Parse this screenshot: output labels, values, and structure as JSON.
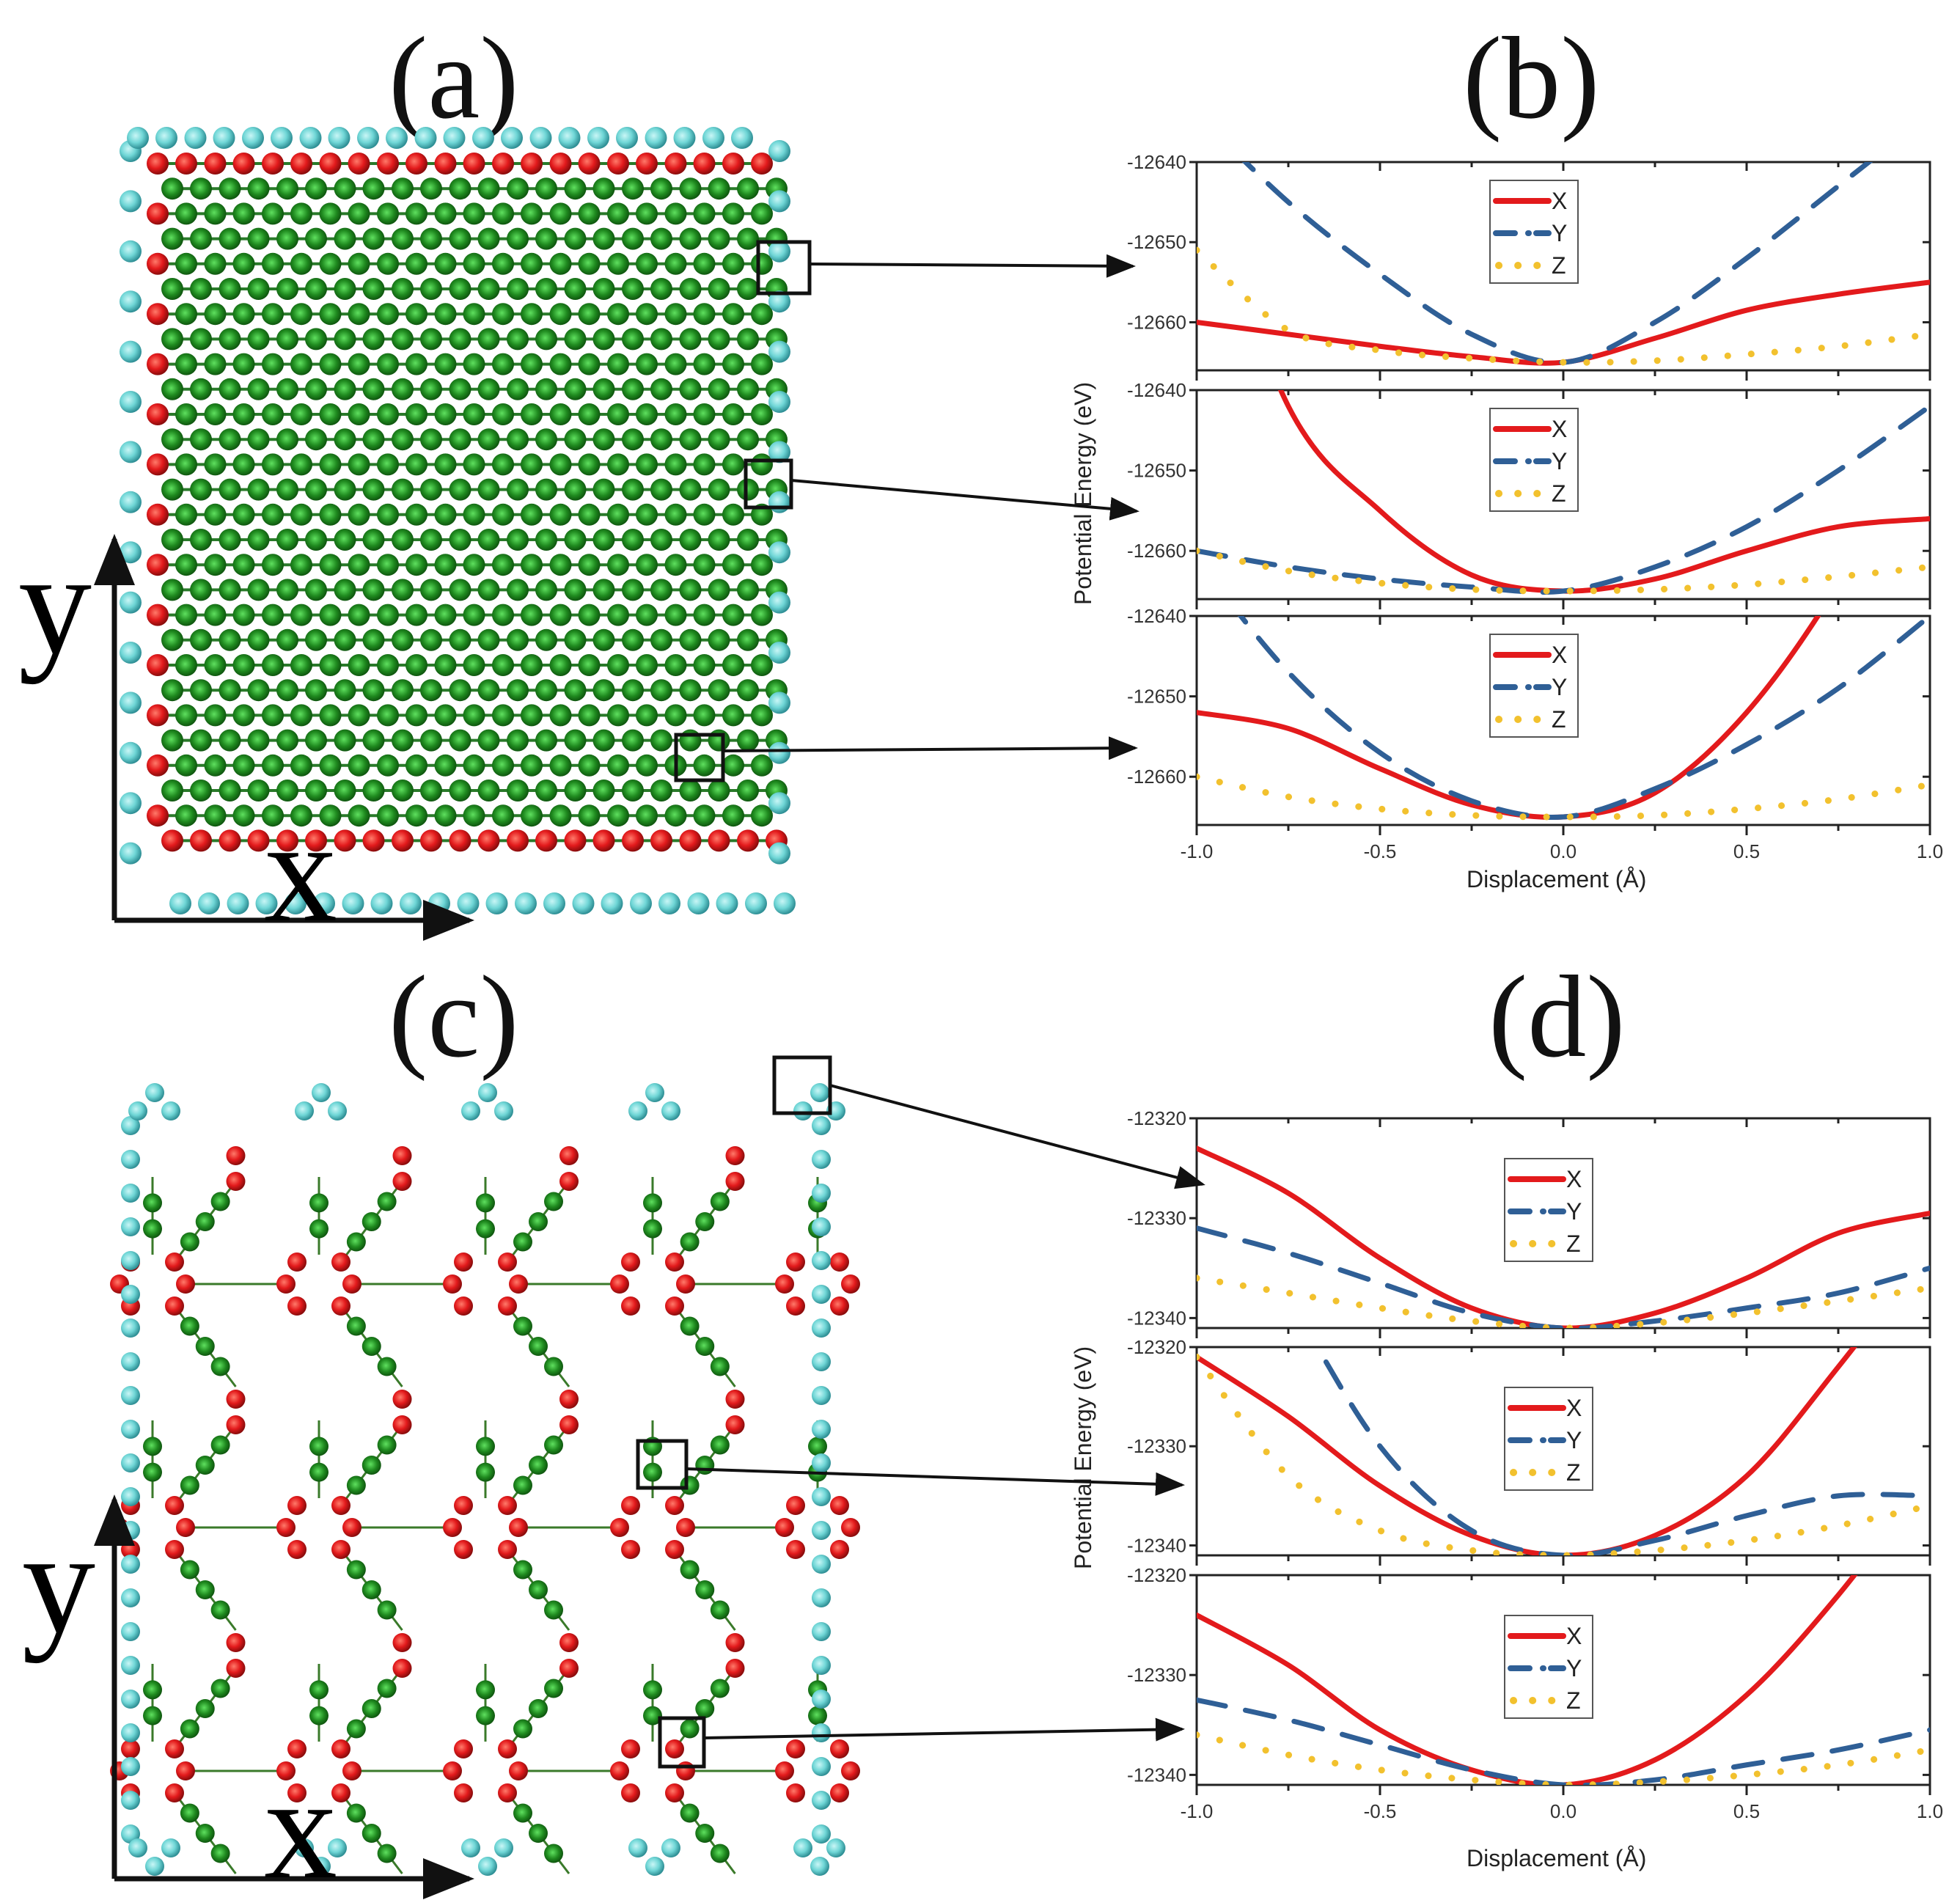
{
  "panels": {
    "a": {
      "label": "(a)",
      "axis_x": "x",
      "axis_y": "y"
    },
    "b": {
      "label": "(b)"
    },
    "c": {
      "label": "(c)",
      "axis_x": "x",
      "axis_y": "y"
    },
    "d": {
      "label": "(d)"
    }
  },
  "legend": [
    {
      "name": "X",
      "color": "#e31a1c",
      "style": "solid"
    },
    {
      "name": "Y",
      "color": "#2f5f96",
      "style": "dash-dot"
    },
    {
      "name": "Z",
      "color": "#f2c12e",
      "style": "dot"
    }
  ],
  "atom_colors": {
    "edge": "#6fd6d6",
    "corner": "#e31a1c",
    "interior": "#1f8a1f"
  },
  "chart_data": [
    {
      "type": "line",
      "panel": "b",
      "subplot": 1,
      "title": "",
      "xlabel": "Displacement (Å)",
      "ylabel": "Potential Energy (eV)",
      "xlim": [
        -1.0,
        1.0
      ],
      "ylim": [
        -12666,
        -12640
      ],
      "x_ticks": [
        "-1.0",
        "-0.5",
        "0.0",
        "0.5",
        "1.0"
      ],
      "y_ticks": [
        "-12640",
        "-12650",
        "-12660"
      ],
      "x": [
        -1.0,
        -0.75,
        -0.5,
        -0.25,
        0.0,
        0.25,
        0.5,
        0.75,
        1.0
      ],
      "series": [
        {
          "name": "X",
          "values": [
            -12660,
            -12661.5,
            -12663,
            -12664.3,
            -12665,
            -12662,
            -12658.5,
            -12656.5,
            -12655
          ]
        },
        {
          "name": "Y",
          "values": [
            -12634,
            -12645,
            -12654,
            -12661.5,
            -12665,
            -12660,
            -12652,
            -12643,
            -12634
          ]
        },
        {
          "name": "Z",
          "values": [
            -12651,
            -12661,
            -12663.5,
            -12664.5,
            -12665,
            -12664.8,
            -12664,
            -12663,
            -12661.5
          ]
        }
      ],
      "legend_position": "upper-center",
      "grid": false
    },
    {
      "type": "line",
      "panel": "b",
      "subplot": 2,
      "xlabel": "Displacement (Å)",
      "ylabel": "Potential Energy (eV)",
      "xlim": [
        -1.0,
        1.0
      ],
      "ylim": [
        -12666,
        -12640
      ],
      "x_ticks": [
        "-1.0",
        "-0.5",
        "0.0",
        "0.5",
        "1.0"
      ],
      "y_ticks": [
        "-12640",
        "-12650",
        "-12660"
      ],
      "x": [
        -1.0,
        -0.75,
        -0.5,
        -0.25,
        0.0,
        0.25,
        0.5,
        0.75,
        1.0
      ],
      "series": [
        {
          "name": "X",
          "values": [
            -12610,
            -12642,
            -12655,
            -12663,
            -12665,
            -12663.5,
            -12660,
            -12657,
            -12656
          ]
        },
        {
          "name": "Y",
          "values": [
            -12660,
            -12662,
            -12663.5,
            -12664.5,
            -12665,
            -12662,
            -12657,
            -12650,
            -12642
          ]
        },
        {
          "name": "Z",
          "values": [
            -12660,
            -12662.5,
            -12664,
            -12664.8,
            -12665,
            -12664.8,
            -12664.2,
            -12663.2,
            -12662
          ]
        }
      ],
      "legend_position": "upper-center",
      "grid": false
    },
    {
      "type": "line",
      "panel": "b",
      "subplot": 3,
      "xlabel": "Displacement (Å)",
      "ylabel": "Potential Energy (eV)",
      "xlim": [
        -1.0,
        1.0
      ],
      "ylim": [
        -12666,
        -12640
      ],
      "x_ticks": [
        "-1.0",
        "-0.5",
        "0.0",
        "0.5",
        "1.0"
      ],
      "y_ticks": [
        "-12640",
        "-12650",
        "-12660"
      ],
      "x": [
        -1.0,
        -0.75,
        -0.5,
        -0.25,
        0.0,
        0.25,
        0.5,
        0.75,
        1.0
      ],
      "series": [
        {
          "name": "X",
          "values": [
            -12652,
            -12654,
            -12659,
            -12663.5,
            -12665,
            -12662,
            -12652,
            -12636,
            -12615
          ]
        },
        {
          "name": "Y",
          "values": [
            -12633,
            -12647,
            -12657,
            -12663,
            -12665,
            -12661.5,
            -12656,
            -12649,
            -12640
          ]
        },
        {
          "name": "Z",
          "values": [
            -12660,
            -12662.5,
            -12664,
            -12664.8,
            -12665,
            -12664.8,
            -12664,
            -12662.8,
            -12661
          ]
        }
      ],
      "legend_position": "upper-center",
      "grid": false
    },
    {
      "type": "line",
      "panel": "d",
      "subplot": 1,
      "xlabel": "Displacement (Å)",
      "ylabel": "Potential Energy (eV)",
      "xlim": [
        -1.0,
        1.0
      ],
      "ylim": [
        -12341,
        -12320
      ],
      "x_ticks": [
        "-1.0",
        "-0.5",
        "0.0",
        "0.5",
        "1.0"
      ],
      "y_ticks": [
        "-12320",
        "-12330",
        "-12340"
      ],
      "x": [
        -1.0,
        -0.75,
        -0.5,
        -0.25,
        0.0,
        0.25,
        0.5,
        0.75,
        1.0
      ],
      "series": [
        {
          "name": "X",
          "values": [
            -12323,
            -12327.5,
            -12334,
            -12339,
            -12341,
            -12339.5,
            -12336,
            -12331.5,
            -12329.5
          ]
        },
        {
          "name": "Y",
          "values": [
            -12331,
            -12333.5,
            -12336.5,
            -12339.5,
            -12341,
            -12340.3,
            -12339,
            -12337.5,
            -12335
          ]
        },
        {
          "name": "Z",
          "values": [
            -12336,
            -12337.5,
            -12339,
            -12340.3,
            -12341,
            -12340.5,
            -12339.5,
            -12338.3,
            -12337
          ]
        }
      ],
      "legend_position": "upper-center",
      "grid": false
    },
    {
      "type": "line",
      "panel": "d",
      "subplot": 2,
      "xlabel": "Displacement (Å)",
      "ylabel": "Potential Energy (eV)",
      "xlim": [
        -1.0,
        1.0
      ],
      "ylim": [
        -12341,
        -12320
      ],
      "x_ticks": [
        "-1.0",
        "-0.5",
        "0.0",
        "0.5",
        "1.0"
      ],
      "y_ticks": [
        "-12320",
        "-12330",
        "-12340"
      ],
      "x": [
        -1.0,
        -0.75,
        -0.5,
        -0.25,
        0.0,
        0.25,
        0.5,
        0.75,
        1.0
      ],
      "series": [
        {
          "name": "X",
          "values": [
            -12321,
            -12327,
            -12334,
            -12339,
            -12341,
            -12339,
            -12333,
            -12322,
            -12310
          ]
        },
        {
          "name": "Y",
          "values": [
            -12300,
            -12315,
            -12330,
            -12338.5,
            -12341,
            -12339.5,
            -12337,
            -12335,
            -12335
          ]
        },
        {
          "name": "Z",
          "values": [
            -12321,
            -12333,
            -12338.5,
            -12340.5,
            -12341,
            -12340.5,
            -12339.5,
            -12338,
            -12336
          ]
        }
      ],
      "legend_position": "upper-center",
      "grid": false
    },
    {
      "type": "line",
      "panel": "d",
      "subplot": 3,
      "xlabel": "Displacement (Å)",
      "ylabel": "Potential Energy (eV)",
      "xlim": [
        -1.0,
        1.0
      ],
      "ylim": [
        -12341,
        -12320
      ],
      "x_ticks": [
        "-1.0",
        "-0.5",
        "0.0",
        "0.5",
        "1.0"
      ],
      "y_ticks": [
        "-12320",
        "-12330",
        "-12340"
      ],
      "x": [
        -1.0,
        -0.75,
        -0.5,
        -0.25,
        0.0,
        0.25,
        0.5,
        0.75,
        1.0
      ],
      "series": [
        {
          "name": "X",
          "values": [
            -12324,
            -12329,
            -12335.5,
            -12339.5,
            -12341,
            -12338.5,
            -12332,
            -12322,
            -12310
          ]
        },
        {
          "name": "Y",
          "values": [
            -12332.5,
            -12334.5,
            -12337,
            -12339.5,
            -12341,
            -12340.5,
            -12339,
            -12337.5,
            -12335.5
          ]
        },
        {
          "name": "Z",
          "values": [
            -12336,
            -12338,
            -12339.5,
            -12340.5,
            -12341,
            -12340.7,
            -12340,
            -12339,
            -12337.5
          ]
        }
      ],
      "legend_position": "upper-center",
      "grid": false
    }
  ],
  "axes_text": {
    "ylabel": "Potential Energy (eV)",
    "xlabel": "Displacement (Å)"
  }
}
